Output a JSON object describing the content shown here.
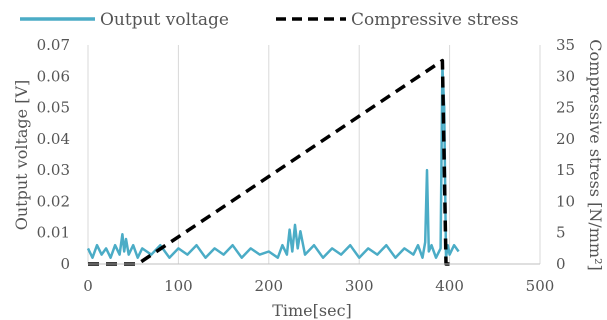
{
  "chart_data": {
    "type": "line",
    "xlabel": "Time[sec]",
    "ylabel": "Output voltage [V]",
    "y2label": "Compressive stress [N/mm²]",
    "xlim": [
      0,
      500
    ],
    "ylim": [
      0,
      0.07
    ],
    "y2lim": [
      0,
      35
    ],
    "x_ticks": [
      "0",
      "100",
      "200",
      "300",
      "400",
      "500"
    ],
    "y_ticks": [
      "0",
      "0.01",
      "0.02",
      "0.03",
      "0.04",
      "0.05",
      "0.06",
      "0.07"
    ],
    "y2_ticks": [
      "0",
      "5",
      "10",
      "15",
      "20",
      "25",
      "30",
      "35"
    ],
    "grid": "vertical",
    "legend_position": "top",
    "series": [
      {
        "name": "Output voltage",
        "axis": "left",
        "color": "#4bacc6",
        "style": "solid",
        "x": [
          0,
          5,
          10,
          15,
          20,
          25,
          30,
          35,
          38,
          40,
          42,
          45,
          50,
          55,
          60,
          70,
          80,
          90,
          100,
          110,
          120,
          130,
          140,
          150,
          160,
          170,
          180,
          190,
          200,
          210,
          215,
          220,
          223,
          226,
          229,
          232,
          235,
          240,
          250,
          260,
          270,
          280,
          290,
          300,
          310,
          320,
          330,
          340,
          350,
          360,
          365,
          370,
          373,
          375,
          377,
          380,
          385,
          390,
          392,
          394,
          396,
          398,
          400,
          405,
          410
        ],
        "y": [
          0.005,
          0.002,
          0.006,
          0.003,
          0.005,
          0.002,
          0.006,
          0.003,
          0.0095,
          0.004,
          0.008,
          0.003,
          0.006,
          0.002,
          0.005,
          0.003,
          0.006,
          0.002,
          0.005,
          0.003,
          0.006,
          0.002,
          0.005,
          0.003,
          0.006,
          0.002,
          0.005,
          0.003,
          0.004,
          0.002,
          0.006,
          0.003,
          0.011,
          0.004,
          0.0125,
          0.005,
          0.0105,
          0.003,
          0.006,
          0.002,
          0.005,
          0.003,
          0.006,
          0.002,
          0.005,
          0.003,
          0.006,
          0.002,
          0.005,
          0.003,
          0.006,
          0.002,
          0.007,
          0.03,
          0.004,
          0.006,
          0.002,
          0.005,
          0.063,
          0.05,
          0.002,
          0.006,
          0.003,
          0.006,
          0.004
        ]
      },
      {
        "name": "Compressive stress",
        "axis": "right",
        "color": "#000000",
        "style": "dashed",
        "x": [
          0,
          55,
          392,
          396,
          400
        ],
        "y": [
          0,
          0,
          32.5,
          0,
          0
        ]
      }
    ]
  }
}
